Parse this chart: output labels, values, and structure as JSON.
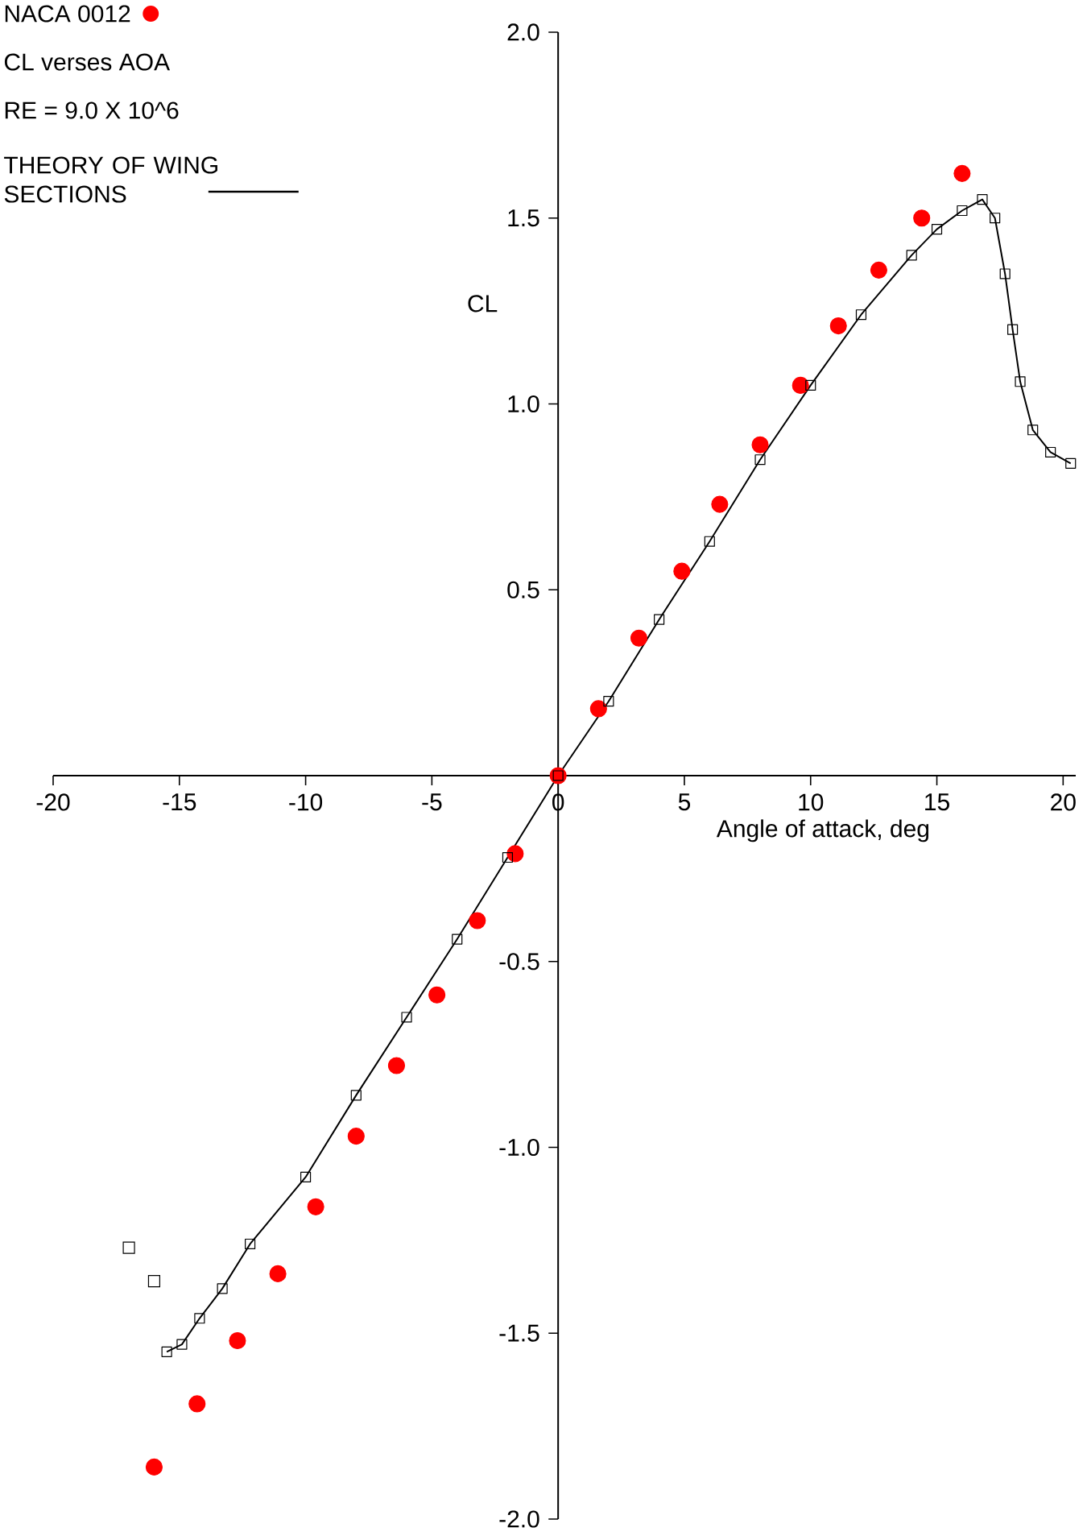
{
  "chart_data": {
    "type": "scatter",
    "title": "CL verses AOA",
    "subtitle": "RE = 9.0 X 10^6",
    "xlabel": "Angle of attack, deg",
    "ylabel": "CL",
    "legend": "top left",
    "xlim": [
      -20,
      20.5
    ],
    "ylim": [
      -2.0,
      2.0
    ],
    "xticks": [
      -20,
      -15,
      -10,
      -5,
      0,
      5,
      10,
      15,
      20
    ],
    "yticks": [
      {
        "value": -2.0,
        "label": "-2.0"
      },
      {
        "value": -1.5,
        "label": "-1.5"
      },
      {
        "value": -1.0,
        "label": "-1.0"
      },
      {
        "value": -0.5,
        "label": "-0.5"
      },
      {
        "value": 0.5,
        "label": "0.5"
      },
      {
        "value": 1.0,
        "label": "1.0"
      },
      {
        "value": 1.5,
        "label": "1.5"
      },
      {
        "value": 2.0,
        "label": "2.0"
      }
    ],
    "series": [
      {
        "name": "NACA 0012",
        "color": "#ff0000",
        "marker": "circle",
        "x": [
          -16.0,
          -14.3,
          -12.7,
          -11.1,
          -9.6,
          -8.0,
          -6.4,
          -4.8,
          -3.2,
          -1.7,
          0,
          1.6,
          3.2,
          4.9,
          6.4,
          8.0,
          9.6,
          11.1,
          12.7,
          14.4,
          16.0
        ],
        "values": [
          -1.86,
          -1.69,
          -1.52,
          -1.34,
          -1.16,
          -0.97,
          -0.78,
          -0.59,
          -0.39,
          -0.21,
          0,
          0.18,
          0.37,
          0.55,
          0.73,
          0.89,
          1.05,
          1.21,
          1.36,
          1.5,
          1.62
        ]
      },
      {
        "name": "THEORY OF WING SECTIONS",
        "type": "line",
        "color": "#000000",
        "marker": "square",
        "line_style": "solid",
        "x": [
          -15.5,
          -14.9,
          -14.2,
          -13.3,
          -12.2,
          -10,
          -8,
          -6,
          -4,
          -2,
          0,
          2,
          4,
          6,
          8,
          10,
          12,
          14,
          15,
          16,
          16.8,
          17.3,
          17.7,
          18.0,
          18.3,
          18.8,
          19.5,
          20.3
        ],
        "values": [
          -1.55,
          -1.53,
          -1.46,
          -1.38,
          -1.26,
          -1.08,
          -0.86,
          -0.65,
          -0.44,
          -0.22,
          0,
          0.2,
          0.42,
          0.63,
          0.85,
          1.05,
          1.24,
          1.4,
          1.47,
          1.52,
          1.55,
          1.5,
          1.35,
          1.2,
          1.06,
          0.93,
          0.87,
          0.84
        ]
      },
      {
        "color": "#000000",
        "marker": "square",
        "x": [
          -17.0,
          -16.0
        ],
        "values": [
          -1.27,
          -1.36
        ]
      }
    ]
  }
}
